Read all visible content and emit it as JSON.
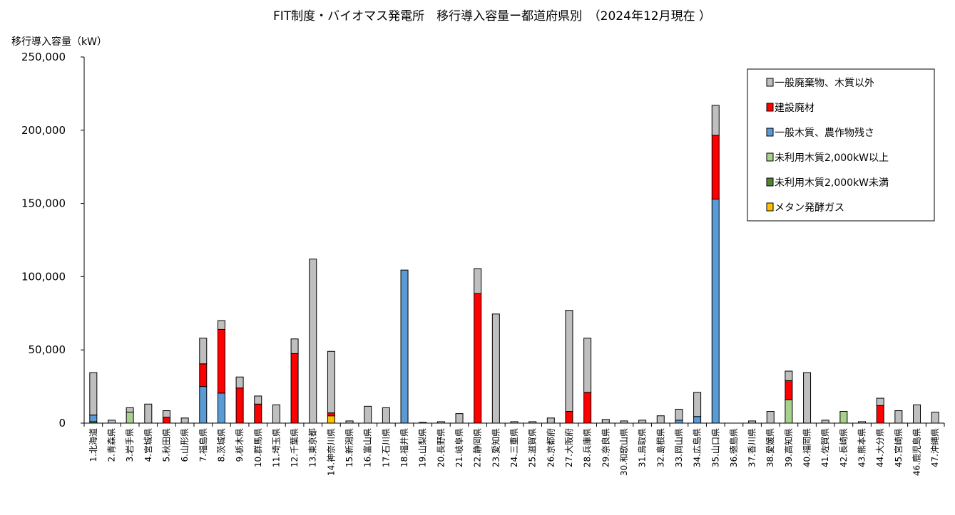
{
  "chart_data": {
    "type": "bar",
    "stacked": true,
    "title": "FIT制度・バイオマス発電所　移行導入容量ー都道府県別　（2024年12月現在 ）",
    "ylabel": "移行導入容量（kW）",
    "xlabel": "",
    "ylim": [
      0,
      250000
    ],
    "yticks": [
      0,
      50000,
      100000,
      150000,
      200000,
      250000
    ],
    "ytick_labels": [
      "0",
      "50,000",
      "100,000",
      "150,000",
      "200,000",
      "250,000"
    ],
    "grid": false,
    "legend_position": "top-right",
    "categories": [
      "1.北海道",
      "2.青森県",
      "3.岩手県",
      "4.宮城県",
      "5.秋田県",
      "6.山形県",
      "7.福島県",
      "8.茨城県",
      "9.栃木県",
      "10.群馬県",
      "11.埼玉県",
      "12.千葉県",
      "13.東京都",
      "14.神奈川県",
      "15.新潟県",
      "16.富山県",
      "17.石川県",
      "18.福井県",
      "19.山梨県",
      "20.長野県",
      "21.岐阜県",
      "22.静岡県",
      "23.愛知県",
      "24.三重県",
      "25.滋賀県",
      "26.京都府",
      "27.大阪府",
      "28.兵庫県",
      "29.奈良県",
      "30.和歌山県",
      "31.鳥取県",
      "32.島根県",
      "33.岡山県",
      "34.広島県",
      "35.山口県",
      "36.徳島県",
      "37.香川県",
      "38.愛媛県",
      "39.高知県",
      "40.福岡県",
      "41.佐賀県",
      "42.長崎県",
      "43.熊本県",
      "44.大分県",
      "45.宮崎県",
      "46.鹿児島県",
      "47.沖縄県"
    ],
    "series": [
      {
        "name": "メタン発酵ガス",
        "color": "#ffc000",
        "values": [
          0,
          0,
          0,
          0,
          0,
          0,
          0,
          0,
          0,
          0,
          0,
          0,
          0,
          5000,
          0,
          0,
          0,
          0,
          0,
          0,
          0,
          0,
          0,
          0,
          0,
          0,
          0,
          0,
          0,
          0,
          0,
          0,
          0,
          0,
          0,
          0,
          0,
          0,
          0,
          0,
          0,
          0,
          0,
          0,
          0,
          0,
          0
        ]
      },
      {
        "name": "未利用木質2,000kW未満",
        "color": "#548235",
        "values": [
          1000,
          0,
          0,
          0,
          0,
          0,
          0,
          0,
          0,
          0,
          0,
          0,
          0,
          0,
          0,
          0,
          0,
          0,
          0,
          0,
          0,
          0,
          0,
          0,
          0,
          0,
          0,
          0,
          0,
          0,
          0,
          0,
          0,
          0,
          0,
          0,
          0,
          0,
          0,
          0,
          0,
          0,
          0,
          0,
          0,
          0,
          0
        ]
      },
      {
        "name": "未利用木質2,000kW以上",
        "color": "#a9d18e",
        "values": [
          0,
          0,
          7500,
          0,
          0,
          0,
          0,
          0,
          0,
          0,
          0,
          0,
          0,
          0,
          0,
          0,
          0,
          0,
          0,
          0,
          0,
          0,
          0,
          0,
          0,
          0,
          0,
          0,
          0,
          0,
          0,
          0,
          0,
          0,
          0,
          0,
          0,
          0,
          16000,
          0,
          0,
          8000,
          0,
          0,
          0,
          0,
          0
        ]
      },
      {
        "name": "一般木質、農作物残さ",
        "color": "#5b9bd5",
        "values": [
          4500,
          0,
          0,
          0,
          0,
          0,
          25000,
          20500,
          0,
          0,
          0,
          0,
          0,
          0,
          0,
          0,
          0,
          104500,
          0,
          0,
          0,
          0,
          0,
          0,
          0,
          0,
          0,
          0,
          0,
          0,
          0,
          0,
          2000,
          4500,
          153000,
          0,
          0,
          0,
          0,
          0,
          0,
          0,
          0,
          0,
          0,
          0,
          0
        ]
      },
      {
        "name": "建設廃材",
        "color": "#ff0000",
        "values": [
          0,
          0,
          0,
          0,
          4000,
          0,
          15500,
          43500,
          24000,
          13000,
          0,
          47500,
          0,
          2000,
          0,
          0,
          0,
          0,
          0,
          0,
          0,
          88500,
          0,
          0,
          0,
          0,
          8000,
          21000,
          0,
          0,
          0,
          0,
          0,
          0,
          43500,
          0,
          0,
          0,
          13000,
          0,
          0,
          0,
          0,
          12000,
          0,
          0,
          0
        ]
      },
      {
        "name": "一般廃棄物、木質以外",
        "color": "#bfbfbf",
        "values": [
          29000,
          2000,
          3000,
          13000,
          4500,
          3500,
          17500,
          6000,
          7500,
          5500,
          12500,
          10000,
          112000,
          42000,
          1500,
          11500,
          10500,
          0,
          500,
          1000,
          6500,
          17000,
          74500,
          1000,
          1000,
          3500,
          69000,
          37000,
          2500,
          1500,
          2000,
          5000,
          7500,
          16500,
          20500,
          0,
          1500,
          8000,
          6500,
          34500,
          2000,
          0,
          1000,
          5000,
          8500,
          12500,
          7500
        ]
      }
    ],
    "legend_order": [
      "一般廃棄物、木質以外",
      "建設廃材",
      "一般木質、農作物残さ",
      "未利用木質2,000kW以上",
      "未利用木質2,000kW未満",
      "メタン発酵ガス"
    ]
  }
}
